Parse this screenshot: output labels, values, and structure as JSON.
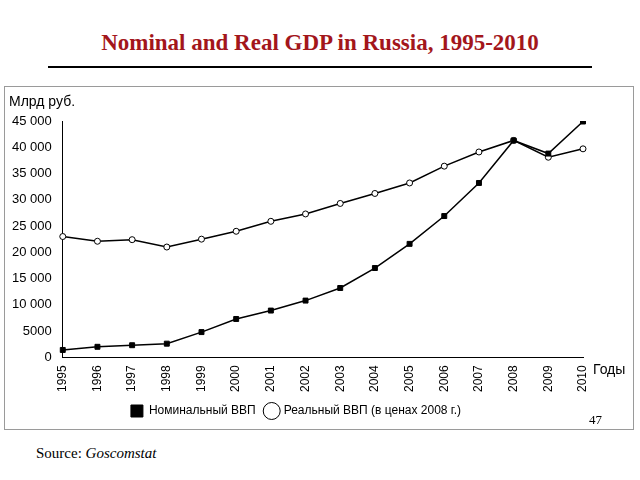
{
  "chart_data": {
    "type": "line",
    "title": "Nominal and Real GDP in Russia, 1995-2010",
    "y_label": "Млрд руб.",
    "x_label": "Годы",
    "source_note": "Source: Goscomstat",
    "page_number": 47,
    "categories": [
      "1995",
      "1996",
      "1997",
      "1998",
      "1999",
      "2000",
      "2001",
      "2002",
      "2003",
      "2004",
      "2005",
      "2006",
      "2007",
      "2008",
      "2009",
      "2010"
    ],
    "series": [
      {
        "name": "Номинальный ВВП",
        "color": "#000000",
        "marker": "square",
        "line_style": "solid",
        "values": [
          1400,
          2000,
          2300,
          2600,
          4800,
          7300,
          8900,
          10800,
          13200,
          17000,
          21600,
          26900,
          33200,
          41300,
          38800,
          44900
        ]
      },
      {
        "name": "Реальный ВВП (в ценах 2008 г.)",
        "color": "#000000",
        "marker": "circle",
        "line_style": "solid",
        "values": [
          23000,
          22100,
          22400,
          21000,
          22500,
          24000,
          25900,
          27300,
          29300,
          31200,
          33200,
          36400,
          39100,
          41300,
          38100,
          39700
        ]
      }
    ],
    "ylim": [
      0,
      45000
    ],
    "yticks": [
      0,
      5000,
      {
        "value": 10000,
        "label": "10 000"
      },
      {
        "value": 15000,
        "label": "15 000"
      },
      {
        "value": 20000,
        "label": "20 000"
      },
      {
        "value": 25000,
        "label": "25 000"
      },
      {
        "value": 30000,
        "label": "30 000"
      },
      {
        "value": 35000,
        "label": "35 000"
      },
      {
        "value": 40000,
        "label": "40 000"
      },
      {
        "value": 45000,
        "label": "45 000"
      }
    ],
    "grid": false,
    "legend": "bottom"
  }
}
